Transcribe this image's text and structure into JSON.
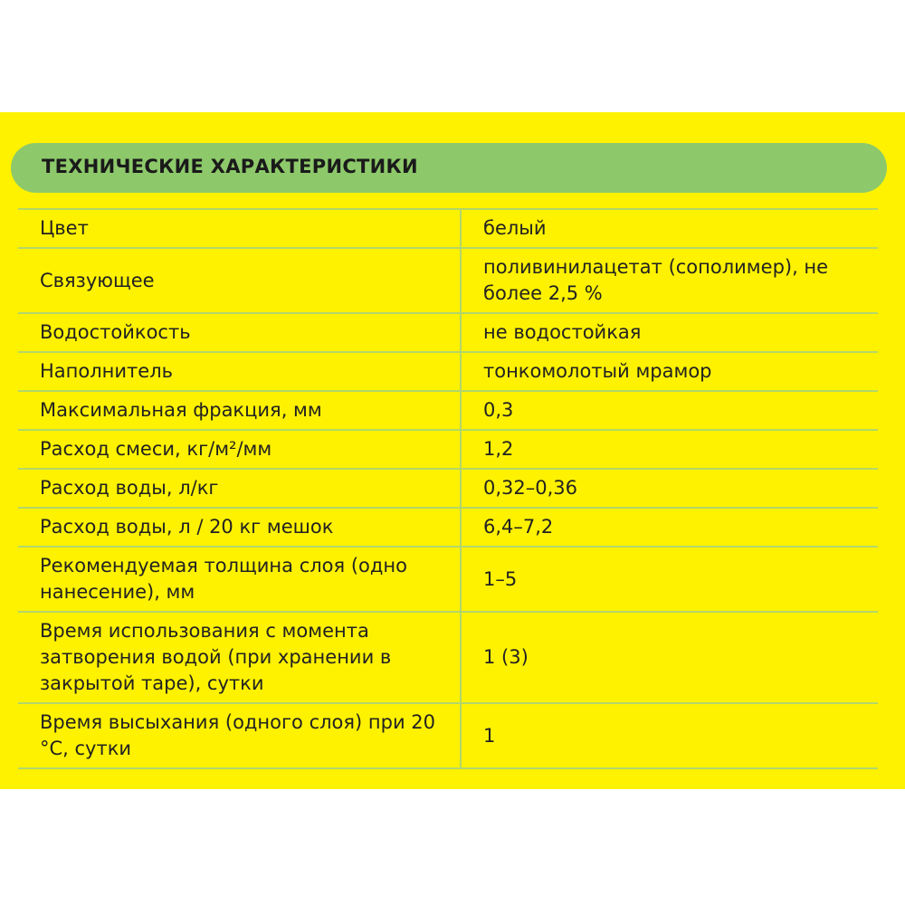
{
  "title": "ТЕХНИЧЕСКИЕ ХАРАКТЕРИСТИКИ",
  "colors": {
    "background": "#fff200",
    "header": "#8dc96a",
    "lines": "#b2d66a"
  },
  "rows": [
    {
      "label": "Цвет",
      "value": "белый"
    },
    {
      "label": "Связующее",
      "value": "поливинилацетат (сополимер), не более 2,5 %"
    },
    {
      "label": "Водостойкость",
      "value": "не водостойкая"
    },
    {
      "label": "Наполнитель",
      "value": "тонкомолотый мрамор"
    },
    {
      "label": "Максимальная фракция, мм",
      "value": "0,3"
    },
    {
      "label": "Расход смеси, кг/м²/мм",
      "value": "1,2"
    },
    {
      "label": "Расход воды, л/кг",
      "value": "0,32–0,36"
    },
    {
      "label": "Расход воды, л / 20 кг мешок",
      "value": "6,4–7,2"
    },
    {
      "label": "Рекомендуемая толщина слоя (одно нанесение), мм",
      "value": "1–5"
    },
    {
      "label": "Время использования с момента затворения водой (при хранении в закрытой таре), сутки",
      "value": "1 (3)"
    },
    {
      "label": "Время высыхания (одного слоя) при 20 °С, сутки",
      "value": "1"
    }
  ]
}
